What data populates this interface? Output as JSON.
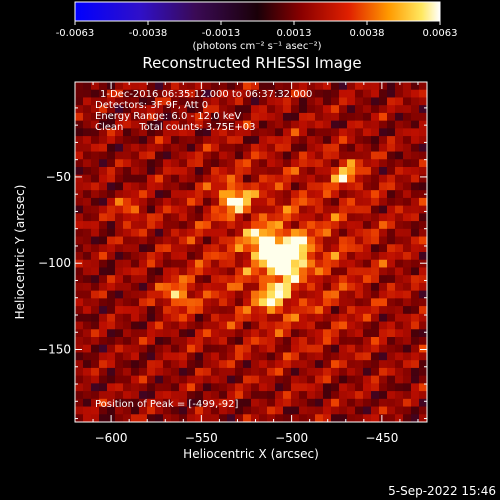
{
  "colorbar": {
    "ticks": [
      "-0.0063",
      "-0.0038",
      "-0.0013",
      "0.0013",
      "0.0038",
      "0.0063"
    ],
    "unit_label": "(photons cm⁻² s⁻¹ asec⁻²)"
  },
  "title": "Reconstructed RHESSI Image",
  "info": {
    "line1": "1-Dec-2016 06:35:12.000 to 06:37:32.000",
    "line2": "Detectors: 3F 9F, Att 0",
    "line3": "Energy Range: 6.0 - 12.0 keV",
    "line4": "Clean     Total counts: 3.75E+03"
  },
  "peak_label": "Position of Peak = [-499,-92]",
  "timestamp": "5-Sep-2022 15:46",
  "chart_data": {
    "type": "heatmap",
    "title": "Reconstructed RHESSI Image",
    "xlabel": "Heliocentric X (arcsec)",
    "ylabel": "Heliocentric Y (arcsec)",
    "xlim": [
      -620,
      -425
    ],
    "ylim": [
      -192,
      5
    ],
    "xticks": [
      -600,
      -550,
      -500,
      -450
    ],
    "yticks": [
      -50,
      -100,
      -150
    ],
    "xtick_labels": [
      "−600",
      "−550",
      "−500",
      "−450"
    ],
    "ytick_labels": [
      "−50",
      "−100",
      "−150"
    ],
    "colorbar_range": [
      -0.0063,
      0.0063
    ],
    "colormap": "rhessi-hot",
    "peak": [
      -499,
      -92
    ],
    "bright_sources": [
      {
        "x": -499,
        "y": -92,
        "level": 1.0
      },
      {
        "x": -515,
        "y": -89,
        "level": 0.85
      },
      {
        "x": -505,
        "y": -102,
        "level": 0.8
      },
      {
        "x": -532,
        "y": -62,
        "level": 0.75
      },
      {
        "x": -510,
        "y": -120,
        "level": 0.65
      },
      {
        "x": -563,
        "y": -119,
        "level": 0.65
      },
      {
        "x": -470,
        "y": -48,
        "level": 0.55
      },
      {
        "x": -590,
        "y": -70,
        "level": 0.45
      }
    ]
  },
  "colors": {
    "background": "#000000",
    "text": "#ffffff"
  }
}
